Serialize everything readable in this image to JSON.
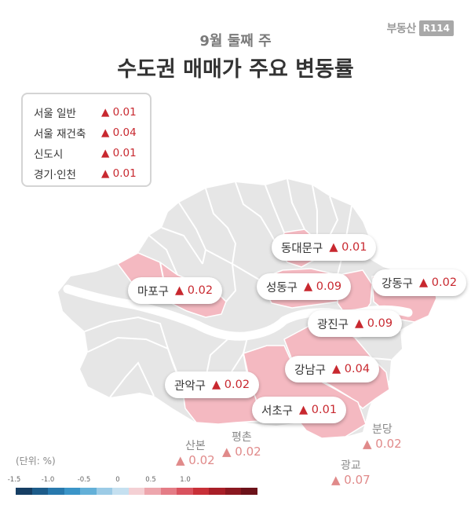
{
  "logo": {
    "text": "부동산",
    "box": "R114"
  },
  "subtitle": "9월 둘째 주",
  "title": "수도권 매매가 주요 변동률",
  "summary": [
    {
      "label": "서울 일반",
      "value": "▲ 0.01"
    },
    {
      "label": "서울 재건축",
      "value": "▲ 0.04"
    },
    {
      "label": "신도시",
      "value": "▲ 0.01"
    },
    {
      "label": "경기·인천",
      "value": "▲ 0.01"
    }
  ],
  "districts": [
    {
      "name": "동대문구",
      "value": "▲ 0.01"
    },
    {
      "name": "마포구",
      "value": "▲ 0.02"
    },
    {
      "name": "성동구",
      "value": "▲ 0.09"
    },
    {
      "name": "강동구",
      "value": "▲ 0.02"
    },
    {
      "name": "광진구",
      "value": "▲ 0.09"
    },
    {
      "name": "강남구",
      "value": "▲ 0.04"
    },
    {
      "name": "관악구",
      "value": "▲ 0.02"
    },
    {
      "name": "서초구",
      "value": "▲ 0.01"
    }
  ],
  "satellites": [
    {
      "name": "산본",
      "value": "▲ 0.02"
    },
    {
      "name": "평촌",
      "value": "▲ 0.02"
    },
    {
      "name": "분당",
      "value": "▲ 0.02"
    },
    {
      "name": "광교",
      "value": "▲ 0.07"
    }
  ],
  "legend": {
    "unit": "(단위: %)",
    "ticks": [
      "-1.5",
      "-1.0",
      "-0.5",
      "0",
      "0.5",
      "1.0"
    ],
    "colors": [
      "#163e63",
      "#1d5c8a",
      "#2879ad",
      "#3b95c8",
      "#63b0d8",
      "#9ccbe6",
      "#c5e0f0",
      "#f4d0d4",
      "#eda6ad",
      "#e47c86",
      "#d9525e",
      "#c83038",
      "#a81f28",
      "#8a1820",
      "#6c121a"
    ]
  },
  "map_colors": {
    "base": "#e6e6e6",
    "highlight": "#f4b9c1",
    "border": "#ffffff",
    "river": "#ffffff"
  }
}
